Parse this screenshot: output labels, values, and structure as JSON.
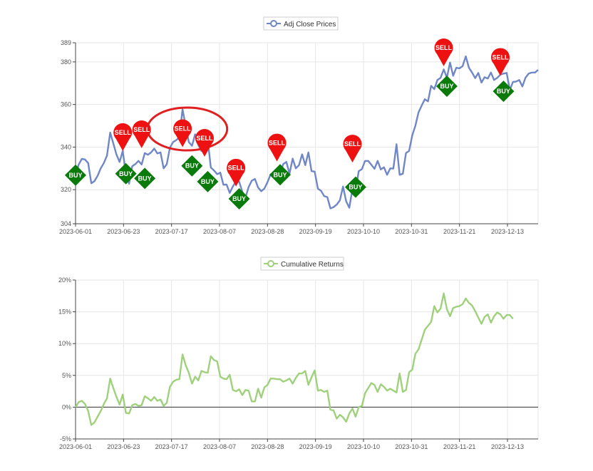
{
  "colors": {
    "price_line": "#6f86c7",
    "returns_line": "#9fd17c",
    "sell_marker": "#ee1111",
    "buy_marker": "#0a7a0a",
    "annotation_circle": "#e02020",
    "grid": "#e6e6e6",
    "axis": "#444444"
  },
  "chart_data": [
    {
      "type": "line",
      "legend": "Adj Close Prices",
      "legend_position": "top-center",
      "grid": true,
      "ylim": [
        304,
        389
      ],
      "y_ticks": [
        304,
        320,
        340,
        360,
        380,
        389
      ],
      "y_tick_labels": [
        "304",
        "320",
        "340",
        "360",
        "380",
        "389"
      ],
      "x_tick_labels": [
        "2023-06-01",
        "2023-06-23",
        "2023-07-17",
        "2023-08-07",
        "2023-08-28",
        "2023-09-19",
        "2023-10-10",
        "2023-10-31",
        "2023-11-21",
        "2023-12-13"
      ],
      "series": [
        {
          "name": "Adj Close Prices",
          "points": [
            [
              0,
              326.8
            ],
            [
              1,
              331.8
            ],
            [
              2,
              334.5
            ],
            [
              3,
              334.2
            ],
            [
              4,
              332.5
            ],
            [
              5,
              323.0
            ],
            [
              6,
              324.0
            ],
            [
              7,
              326.5
            ],
            [
              8,
              330.0
            ],
            [
              9,
              332.5
            ],
            [
              10,
              336.0
            ],
            [
              11,
              346.8
            ],
            [
              12,
              341.7
            ],
            [
              13,
              336.5
            ],
            [
              14,
              333.0
            ],
            [
              15,
              338.2
            ],
            [
              16,
              327.5
            ],
            [
              17,
              322.8
            ],
            [
              18,
              331.0
            ],
            [
              19,
              332.0
            ],
            [
              20,
              333.5
            ],
            [
              21,
              331.8
            ],
            [
              22,
              337.2
            ],
            [
              23,
              336.4
            ],
            [
              24,
              337.5
            ],
            [
              25,
              339.3
            ],
            [
              26,
              337.0
            ],
            [
              27,
              337.5
            ],
            [
              28,
              330.0
            ],
            [
              29,
              332.0
            ],
            [
              30,
              339.7
            ],
            [
              31,
              342.4
            ],
            [
              32,
              343.3
            ],
            [
              33,
              344.5
            ],
            [
              34,
              357.8
            ],
            [
              35,
              349.8
            ],
            [
              36,
              342.4
            ],
            [
              37,
              340.6
            ],
            [
              38,
              346.0
            ],
            [
              39,
              341.0
            ],
            [
              40,
              338.2
            ],
            [
              41,
              346.2
            ],
            [
              42,
              343.5
            ],
            [
              43,
              330.4
            ],
            [
              44,
              329.0
            ],
            [
              45,
              327.3
            ],
            [
              46,
              328.0
            ],
            [
              47,
              322.3
            ],
            [
              48,
              322.4
            ],
            [
              49,
              318.5
            ],
            [
              50,
              321.5
            ],
            [
              51,
              324.0
            ],
            [
              52,
              323.7
            ],
            [
              53,
              319.0
            ],
            [
              54,
              316.3
            ],
            [
              55,
              321.2
            ],
            [
              56,
              324.2
            ],
            [
              57,
              325.0
            ],
            [
              58,
              321.0
            ],
            [
              59,
              319.3
            ],
            [
              60,
              320.5
            ],
            [
              61,
              323.5
            ],
            [
              62,
              327.2
            ],
            [
              63,
              327.2
            ],
            [
              64,
              328.0
            ],
            [
              65,
              327.5
            ],
            [
              66,
              332.0
            ],
            [
              67,
              333.0
            ],
            [
              68,
              327.5
            ],
            [
              69,
              334.6
            ],
            [
              70,
              330.0
            ],
            [
              71,
              331.5
            ],
            [
              72,
              336.6
            ],
            [
              73,
              331.5
            ],
            [
              74,
              337.5
            ],
            [
              75,
              328.7
            ],
            [
              76,
              328.5
            ],
            [
              77,
              320.5
            ],
            [
              78,
              319.5
            ],
            [
              79,
              317.0
            ],
            [
              80,
              316.5
            ],
            [
              81,
              311.2
            ],
            [
              82,
              311.8
            ],
            [
              83,
              313.0
            ],
            [
              84,
              315.0
            ],
            [
              85,
              321.5
            ],
            [
              86,
              314.5
            ],
            [
              87,
              311.5
            ],
            [
              88,
              320.4
            ],
            [
              89,
              319.7
            ],
            [
              90,
              328.7
            ],
            [
              91,
              329.7
            ],
            [
              92,
              333.5
            ],
            [
              93,
              333.5
            ],
            [
              94,
              331.7
            ],
            [
              95,
              329.8
            ],
            [
              96,
              333.5
            ],
            [
              97,
              329.5
            ],
            [
              98,
              330.5
            ],
            [
              99,
              327.0
            ],
            [
              100,
              330.0
            ],
            [
              101,
              329.9
            ],
            [
              102,
              341.3
            ],
            [
              103,
              327.0
            ],
            [
              104,
              327.5
            ],
            [
              105,
              337.2
            ],
            [
              106,
              338.2
            ],
            [
              107,
              345.5
            ],
            [
              108,
              350.0
            ],
            [
              109,
              356.3
            ],
            [
              110,
              359.5
            ],
            [
              111,
              362.5
            ],
            [
              112,
              361.5
            ],
            [
              113,
              368.8
            ],
            [
              114,
              367.2
            ],
            [
              115,
              371.5
            ],
            [
              116,
              372.5
            ],
            [
              117,
              376.5
            ],
            [
              118,
              372.6
            ],
            [
              119,
              379.7
            ],
            [
              120,
              373.5
            ],
            [
              121,
              377.3
            ],
            [
              122,
              377.0
            ],
            [
              123,
              378.0
            ],
            [
              124,
              382.6
            ],
            [
              125,
              377.3
            ],
            [
              126,
              375.0
            ],
            [
              127,
              372.4
            ],
            [
              128,
              374.8
            ],
            [
              129,
              370.3
            ],
            [
              130,
              372.8
            ],
            [
              131,
              372.2
            ],
            [
              132,
              375.0
            ],
            [
              133,
              371.5
            ],
            [
              134,
              372.5
            ],
            [
              135,
              374.0
            ],
            [
              136,
              374.5
            ],
            [
              137,
              374.8
            ],
            [
              138,
              366.8
            ],
            [
              139,
              370.6
            ],
            [
              140,
              370.8
            ],
            [
              141,
              371.5
            ],
            [
              142,
              368.5
            ],
            [
              143,
              372.6
            ],
            [
              144,
              374.5
            ],
            [
              145,
              375.0
            ],
            [
              146,
              375.0
            ],
            [
              147,
              376.3
            ]
          ]
        }
      ],
      "signals": [
        {
          "label": "BUY",
          "x": 0,
          "y": 326.8
        },
        {
          "label": "SELL",
          "x": 15,
          "y": 338.2
        },
        {
          "label": "BUY",
          "x": 16,
          "y": 327.5
        },
        {
          "label": "SELL",
          "x": 21,
          "y": 339.5
        },
        {
          "label": "BUY",
          "x": 22,
          "y": 325.3
        },
        {
          "label": "SELL",
          "x": 34,
          "y": 340.0
        },
        {
          "label": "BUY",
          "x": 37,
          "y": 331.2
        },
        {
          "label": "SELL",
          "x": 41,
          "y": 335.5
        },
        {
          "label": "BUY",
          "x": 42,
          "y": 323.8
        },
        {
          "label": "SELL",
          "x": 51,
          "y": 321.5
        },
        {
          "label": "BUY",
          "x": 52,
          "y": 315.7
        },
        {
          "label": "SELL",
          "x": 64,
          "y": 333.3
        },
        {
          "label": "BUY",
          "x": 65,
          "y": 327.0
        },
        {
          "label": "SELL",
          "x": 88,
          "y": 332.8
        },
        {
          "label": "BUY",
          "x": 89,
          "y": 321.2
        },
        {
          "label": "SELL",
          "x": 117,
          "y": 378.0
        },
        {
          "label": "BUY",
          "x": 118,
          "y": 368.6
        },
        {
          "label": "SELL",
          "x": 135,
          "y": 373.5
        },
        {
          "label": "BUY",
          "x": 136,
          "y": 366.2
        }
      ]
    },
    {
      "type": "line",
      "legend": "Cumulative Returns",
      "legend_position": "top-center",
      "grid": true,
      "ylim": [
        -5,
        20
      ],
      "y_ticks": [
        -5,
        0,
        5,
        10,
        15,
        20
      ],
      "y_tick_labels": [
        "-5%",
        "0%",
        "5%",
        "10%",
        "15%",
        "20%"
      ],
      "x_tick_labels": [
        "2023-06-01",
        "2023-06-23",
        "2023-07-17",
        "2023-08-07",
        "2023-08-28",
        "2023-09-19",
        "2023-10-10",
        "2023-10-31",
        "2023-11-21",
        "2023-12-13"
      ],
      "series": [
        {
          "name": "Cumulative Returns",
          "x_from": 0,
          "y_percent": [
            0.0,
            0.8,
            1.0,
            0.5,
            -0.6,
            -2.8,
            -2.4,
            -1.5,
            -0.6,
            0.5,
            1.4,
            4.5,
            3.0,
            1.6,
            0.4,
            2.0,
            -0.9,
            -1.0,
            0.3,
            0.5,
            0.2,
            0.3,
            1.7,
            1.4,
            1.0,
            1.6,
            1.0,
            1.2,
            0.2,
            0.7,
            3.2,
            4.0,
            4.3,
            4.4,
            8.3,
            6.6,
            5.4,
            3.7,
            4.8,
            4.2,
            5.7,
            5.5,
            5.4,
            8.0,
            7.4,
            7.2,
            4.8,
            4.5,
            4.4,
            5.1,
            2.7,
            2.5,
            2.8,
            1.9,
            2.7,
            2.6,
            0.9,
            0.9,
            2.9,
            1.5,
            3.1,
            3.5,
            4.5,
            4.5,
            4.4,
            4.4,
            4.0,
            4.2,
            4.5,
            3.7,
            4.6,
            5.3,
            5.3,
            5.7,
            3.5,
            4.7,
            5.8,
            2.6,
            2.7,
            2.4,
            2.6,
            -0.4,
            -0.5,
            -1.8,
            -1.2,
            -1.6,
            -2.3,
            -1.0,
            -0.2,
            -1.5,
            0.0,
            0.2,
            2.2,
            3.0,
            3.8,
            3.5,
            2.4,
            3.6,
            3.2,
            2.6,
            2.9,
            2.6,
            2.3,
            5.3,
            2.4,
            2.7,
            5.5,
            5.9,
            8.4,
            9.1,
            10.6,
            12.2,
            12.8,
            13.4,
            15.9,
            14.9,
            15.5,
            17.9,
            15.4,
            14.3,
            15.6,
            15.8,
            15.9,
            16.2,
            17.1,
            16.4,
            16.0,
            15.1,
            14.1,
            13.1,
            14.2,
            14.6,
            13.3,
            14.3,
            14.9,
            14.6,
            13.9,
            14.5,
            14.5,
            13.9
          ]
        }
      ]
    }
  ]
}
